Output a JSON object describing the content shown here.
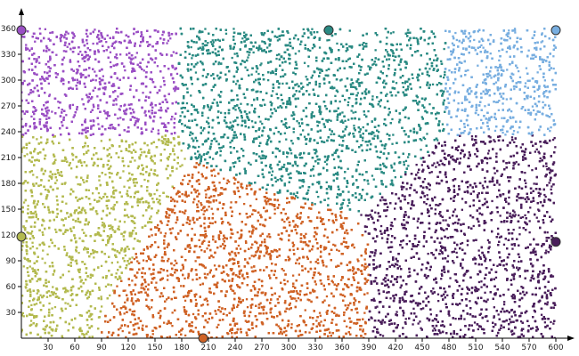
{
  "chart_data": {
    "type": "scatter",
    "title": "",
    "xlabel": "",
    "ylabel": "",
    "xlim": [
      0,
      600
    ],
    "ylim": [
      0,
      360
    ],
    "x_ticks": [
      "30",
      "60",
      "90",
      "120",
      "150",
      "180",
      "210",
      "240",
      "270",
      "300",
      "330",
      "360",
      "390",
      "420",
      "450",
      "480",
      "510",
      "540",
      "570",
      "600"
    ],
    "y_ticks": [
      "30",
      "60",
      "90",
      "120",
      "150",
      "180",
      "210",
      "240",
      "270",
      "300",
      "330",
      "360"
    ],
    "grid": false,
    "legend": "none",
    "regions": [
      {
        "color": "#9a4fc4",
        "centroid": [
          0,
          358
        ],
        "polygon": [
          [
            0,
            360
          ],
          [
            176,
            360
          ],
          [
            176,
            236
          ],
          [
            0,
            236
          ]
        ]
      },
      {
        "color": "#2a8a83",
        "centroid": [
          345,
          358
        ],
        "polygon": [
          [
            176,
            360
          ],
          [
            476,
            360
          ],
          [
            476,
            236
          ],
          [
            420,
            180
          ],
          [
            378,
            141
          ],
          [
            274,
            173
          ],
          [
            189,
            207
          ],
          [
            176,
            236
          ]
        ]
      },
      {
        "color": "#78aee0",
        "centroid": [
          600,
          358
        ],
        "polygon": [
          [
            476,
            360
          ],
          [
            600,
            360
          ],
          [
            600,
            236
          ],
          [
            476,
            236
          ]
        ]
      },
      {
        "color": "#b3ba4f",
        "centroid": [
          0,
          118
        ],
        "polygon": [
          [
            0,
            236
          ],
          [
            176,
            236
          ],
          [
            189,
            207
          ],
          [
            130,
            103
          ],
          [
            102,
            52
          ],
          [
            92,
            20
          ],
          [
            82,
            0
          ],
          [
            0,
            0
          ]
        ]
      },
      {
        "color": "#cf6225",
        "centroid": [
          204,
          0
        ],
        "polygon": [
          [
            82,
            0
          ],
          [
            92,
            20
          ],
          [
            102,
            52
          ],
          [
            130,
            103
          ],
          [
            189,
            207
          ],
          [
            274,
            173
          ],
          [
            378,
            141
          ],
          [
            390,
            112
          ],
          [
            390,
            0
          ]
        ]
      },
      {
        "color": "#4a1f5b",
        "centroid": [
          600,
          112
        ],
        "polygon": [
          [
            390,
            0
          ],
          [
            390,
            112
          ],
          [
            378,
            141
          ],
          [
            420,
            180
          ],
          [
            476,
            236
          ],
          [
            600,
            236
          ],
          [
            600,
            0
          ]
        ]
      }
    ]
  }
}
